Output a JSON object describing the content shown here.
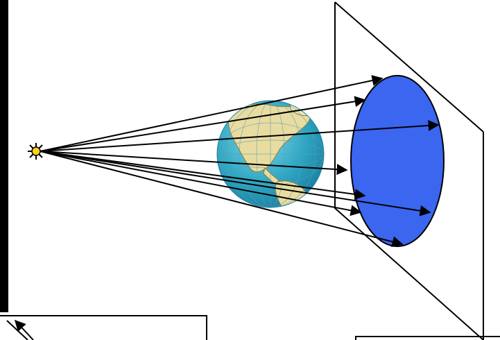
{
  "diagram": {
    "colors": {
      "background": "#ffffff",
      "line": "#000000",
      "source_fill": "#ffd21a",
      "shadow_fill": "#3a66f0",
      "ocean": "#3fb6cf",
      "land": "#e9dca0"
    },
    "elements": {
      "source": "point-light-source-icon",
      "globe": "earth-globe-icon",
      "screen": "projection-screen",
      "shadow": "shadow-ellipse"
    },
    "rays": {
      "count": 8
    }
  }
}
